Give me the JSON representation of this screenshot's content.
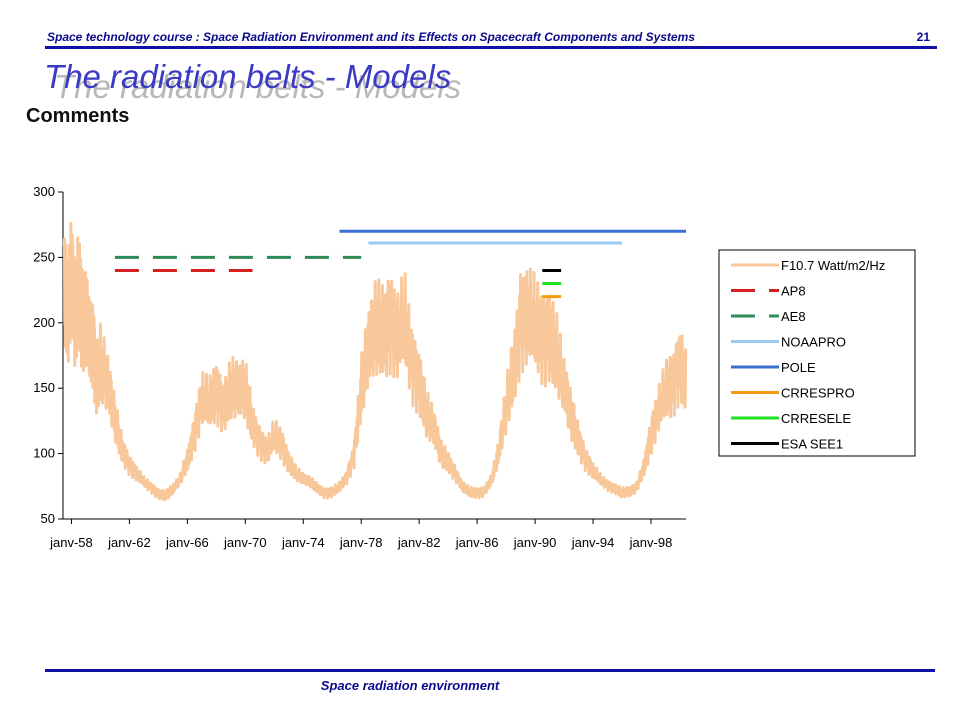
{
  "header": {
    "course": "Space technology course : Space Radiation Environment and its Effects on Spacecraft Components and Systems",
    "page_number": "21"
  },
  "slide": {
    "title": "The radiation belts - Models",
    "heading": "Comments"
  },
  "footer": {
    "text": "Space radiation environment"
  },
  "chart_data": {
    "type": "line",
    "title": "",
    "xlabel": "",
    "ylabel": "",
    "xlim": [
      "1957-06",
      "2000-06"
    ],
    "ylim": [
      50,
      300
    ],
    "yticks": [
      50,
      100,
      150,
      200,
      250,
      300
    ],
    "x_tick_labels": [
      "janv-58",
      "janv-62",
      "janv-66",
      "janv-70",
      "janv-74",
      "janv-78",
      "janv-82",
      "janv-86",
      "janv-90",
      "janv-94",
      "janv-98"
    ],
    "x_tick_years": [
      1958,
      1962,
      1966,
      1970,
      1974,
      1978,
      1982,
      1986,
      1990,
      1994,
      1998
    ],
    "grid": false,
    "legend": {
      "position": "right"
    },
    "f107_series": {
      "name": "F10.7 Watt/m2/Hz",
      "color": "#f9c89a",
      "x": [
        1957.5,
        1957.75,
        1958.0,
        1958.25,
        1958.5,
        1958.75,
        1959.0,
        1959.25,
        1959.5,
        1959.75,
        1960.0,
        1960.5,
        1961.0,
        1961.5,
        1962.0,
        1962.5,
        1963.0,
        1963.5,
        1964.0,
        1964.5,
        1965.0,
        1965.5,
        1966.0,
        1966.5,
        1967.0,
        1967.5,
        1968.0,
        1968.5,
        1969.0,
        1969.5,
        1970.0,
        1970.5,
        1971.0,
        1971.5,
        1972.0,
        1972.5,
        1973.0,
        1973.5,
        1974.0,
        1974.5,
        1975.0,
        1975.5,
        1976.0,
        1976.5,
        1977.0,
        1977.5,
        1978.0,
        1978.5,
        1979.0,
        1979.5,
        1980.0,
        1980.5,
        1981.0,
        1981.5,
        1982.0,
        1982.5,
        1983.0,
        1983.5,
        1984.0,
        1984.5,
        1985.0,
        1985.5,
        1986.0,
        1986.5,
        1987.0,
        1987.5,
        1988.0,
        1988.5,
        1989.0,
        1989.5,
        1990.0,
        1990.5,
        1991.0,
        1991.5,
        1992.0,
        1992.5,
        1993.0,
        1993.5,
        1994.0,
        1994.5,
        1995.0,
        1995.5,
        1996.0,
        1996.5,
        1997.0,
        1997.5,
        1998.0,
        1998.5,
        1999.0,
        1999.5,
        2000.0,
        2000.5
      ],
      "values": [
        240,
        205,
        232,
        198,
        235,
        210,
        200,
        178,
        185,
        160,
        170,
        150,
        125,
        105,
        92,
        84,
        78,
        74,
        70,
        68,
        72,
        80,
        96,
        118,
        140,
        135,
        148,
        140,
        150,
        145,
        148,
        125,
        110,
        100,
        112,
        108,
        95,
        85,
        80,
        78,
        74,
        70,
        70,
        74,
        82,
        100,
        150,
        175,
        195,
        200,
        205,
        185,
        198,
        170,
        160,
        130,
        118,
        100,
        95,
        85,
        74,
        70,
        70,
        72,
        80,
        100,
        135,
        168,
        205,
        200,
        195,
        190,
        198,
        175,
        148,
        128,
        112,
        96,
        86,
        80,
        76,
        74,
        70,
        70,
        74,
        90,
        115,
        130,
        145,
        155,
        175,
        150
      ]
    },
    "model_coverage": [
      {
        "name": "AP8",
        "color": "#d42020",
        "style": "dashed",
        "start": 1961.0,
        "end": 1970.5,
        "y": 240
      },
      {
        "name": "AE8",
        "color": "#2e8b57",
        "style": "dashed",
        "start": 1961.0,
        "end": 1978.0,
        "y": 250
      },
      {
        "name": "NOAAPRO",
        "color": "#99ccf5",
        "style": "solid",
        "start": 1978.5,
        "end": 1996.0,
        "y": 261
      },
      {
        "name": "POLE",
        "color": "#3a6fd4",
        "style": "solid",
        "start": 1976.5,
        "end": 2000.5,
        "y": 270
      },
      {
        "name": "CRRESPRO",
        "color": "#f39c12",
        "style": "solid",
        "start": 1990.5,
        "end": 1991.8,
        "y": 220
      },
      {
        "name": "CRRESELE",
        "color": "#22e022",
        "style": "solid",
        "start": 1990.5,
        "end": 1991.8,
        "y": 230
      },
      {
        "name": "ESA SEE1",
        "color": "#000000",
        "style": "solid",
        "start": 1990.5,
        "end": 1991.8,
        "y": 240
      }
    ]
  }
}
